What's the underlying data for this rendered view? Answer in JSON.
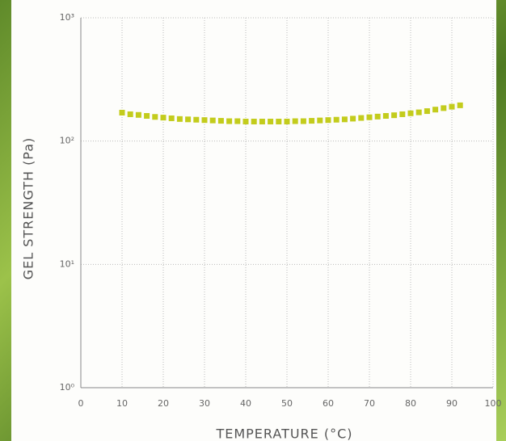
{
  "chart_data": {
    "type": "scatter",
    "x_label": "TEMPERATURE (°C)",
    "y_label": "GEL STRENGTH (Pa)",
    "x": [
      10,
      12,
      14,
      16,
      18,
      20,
      22,
      24,
      26,
      28,
      30,
      32,
      34,
      36,
      38,
      40,
      42,
      44,
      46,
      48,
      50,
      52,
      54,
      56,
      58,
      60,
      62,
      64,
      66,
      68,
      70,
      72,
      74,
      76,
      78,
      80,
      82,
      84,
      86,
      88,
      90,
      92
    ],
    "values": [
      170,
      165,
      163,
      160,
      157,
      155,
      153,
      151,
      150,
      149,
      148,
      147,
      146,
      145,
      145,
      144,
      144,
      144,
      144,
      144,
      144,
      145,
      145,
      146,
      147,
      148,
      149,
      150,
      152,
      154,
      156,
      158,
      160,
      162,
      165,
      168,
      171,
      175,
      180,
      185,
      190,
      195
    ],
    "color": "#c3cc1c",
    "xlim": [
      0,
      100
    ],
    "xticks": [
      0,
      10,
      20,
      30,
      40,
      50,
      60,
      70,
      80,
      90,
      100
    ],
    "ylim": [
      1,
      1000
    ],
    "yscale": "log",
    "yticks": [
      {
        "value": 1,
        "label": "10⁰"
      },
      {
        "value": 10,
        "label": "10¹"
      },
      {
        "value": 100,
        "label": "10²"
      },
      {
        "value": 1000,
        "label": "10³"
      }
    ],
    "grid": true
  }
}
